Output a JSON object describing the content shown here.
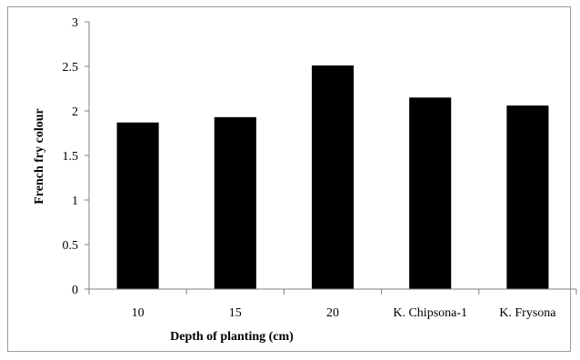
{
  "chart_data": {
    "type": "bar",
    "title": "",
    "xlabel": "Depth of planting (cm)",
    "ylabel": "French fry colour",
    "categories": [
      "10",
      "15",
      "20",
      "K. Chipsona-1",
      "K. Frysona"
    ],
    "values": [
      1.87,
      1.93,
      2.51,
      2.15,
      2.06
    ],
    "ylim": [
      0,
      3
    ],
    "yticks": [
      "0",
      "0.5",
      "1",
      "1.5",
      "2",
      "2.5",
      "3"
    ],
    "ytick_values": [
      0,
      0.5,
      1,
      1.5,
      2,
      2.5,
      3
    ],
    "grid": false,
    "legend": "none",
    "colors": {
      "bar": "#000000",
      "axis": "#808080",
      "border": "#9a9a9a"
    }
  }
}
